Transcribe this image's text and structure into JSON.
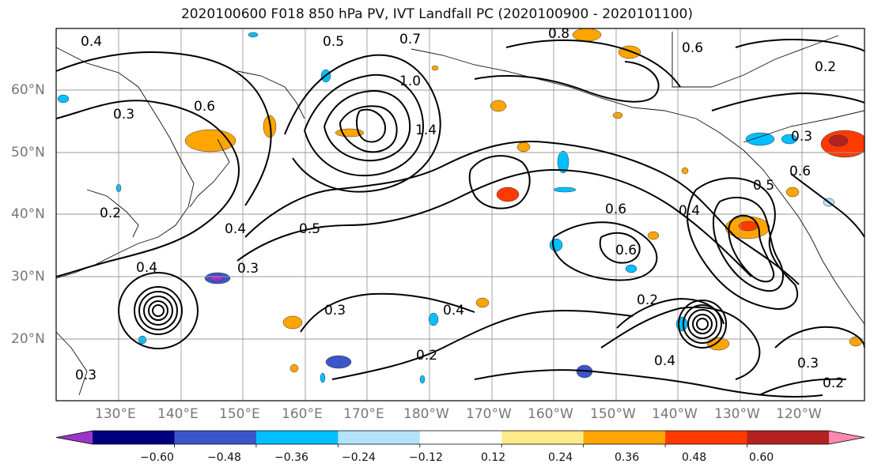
{
  "title": "2020100600 F018 850 hPa PV, IVT Landfall PC (2020100900 - 2020101100)",
  "lat_labels": [
    "60°N",
    "50°N",
    "40°N",
    "30°N",
    "20°N"
  ],
  "lon_labels": [
    "130°E",
    "140°E",
    "150°E",
    "160°E",
    "170°E",
    "180°W",
    "170°W",
    "160°W",
    "150°W",
    "140°W",
    "130°W",
    "120°W"
  ],
  "colorbar": {
    "tick_labels": [
      "−0.60",
      "−0.48",
      "−0.36",
      "−0.24",
      "−0.12",
      "0.12",
      "0.24",
      "0.36",
      "0.48",
      "0.60"
    ],
    "colors": [
      "#9b35c9",
      "#00007f",
      "#3a56c8",
      "#00bfff",
      "#b3e3fb",
      "#ffffff",
      "#ffea8a",
      "#ffa500",
      "#ff3a00",
      "#b22222",
      "#ff88b0"
    ]
  },
  "contour_labels": [
    "0.4",
    "0.5",
    "0.7",
    "0.8",
    "0.6",
    "0.2",
    "0.3",
    "1.0",
    "1.4",
    "0.6",
    "0.3",
    "0.4",
    "0.5",
    "0.3",
    "0.4",
    "0.6",
    "0.2",
    "0.4",
    "0.6",
    "0.2",
    "0.3",
    "0.4",
    "0.3",
    "0.2",
    "0.4",
    "0.2",
    "0.3",
    "0.5",
    "0.6"
  ]
}
